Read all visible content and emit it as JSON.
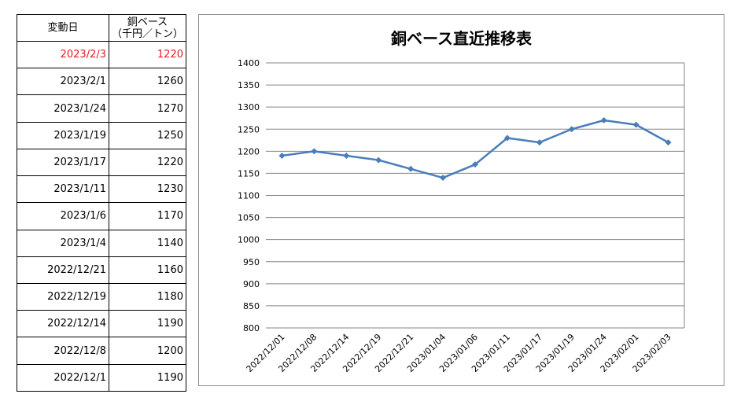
{
  "table": {
    "header": {
      "date": "変動日",
      "value_line1": "銅ベース",
      "value_line2": "（千円／トン）"
    },
    "rows": [
      {
        "date": "2023/2/3",
        "value": "1220"
      },
      {
        "date": "2023/2/1",
        "value": "1260"
      },
      {
        "date": "2023/1/24",
        "value": "1270"
      },
      {
        "date": "2023/1/19",
        "value": "1250"
      },
      {
        "date": "2023/1/17",
        "value": "1220"
      },
      {
        "date": "2023/1/11",
        "value": "1230"
      },
      {
        "date": "2023/1/6",
        "value": "1170"
      },
      {
        "date": "2023/1/4",
        "value": "1140"
      },
      {
        "date": "2022/12/21",
        "value": "1160"
      },
      {
        "date": "2022/12/19",
        "value": "1180"
      },
      {
        "date": "2022/12/14",
        "value": "1190"
      },
      {
        "date": "2022/12/8",
        "value": "1200"
      },
      {
        "date": "2022/12/1",
        "value": "1190"
      }
    ],
    "latest_color": "#e8171e"
  },
  "chart_data": {
    "type": "line",
    "title": "銅ベース直近推移表",
    "categories": [
      "2022/12/01",
      "2022/12/08",
      "2022/12/14",
      "2022/12/19",
      "2022/12/21",
      "2023/01/04",
      "2023/01/06",
      "2023/01/11",
      "2023/01/17",
      "2023/01/19",
      "2023/01/24",
      "2023/02/01",
      "2023/02/03"
    ],
    "series": [
      {
        "values": [
          1190,
          1200,
          1190,
          1180,
          1160,
          1140,
          1170,
          1230,
          1220,
          1250,
          1270,
          1260,
          1220
        ],
        "color": "#4a7ebb"
      }
    ],
    "ylim": [
      800,
      1400
    ],
    "yticks": [
      800,
      850,
      900,
      950,
      1000,
      1050,
      1100,
      1150,
      1200,
      1250,
      1300,
      1350,
      1400
    ],
    "grid": true,
    "legend": "none"
  }
}
